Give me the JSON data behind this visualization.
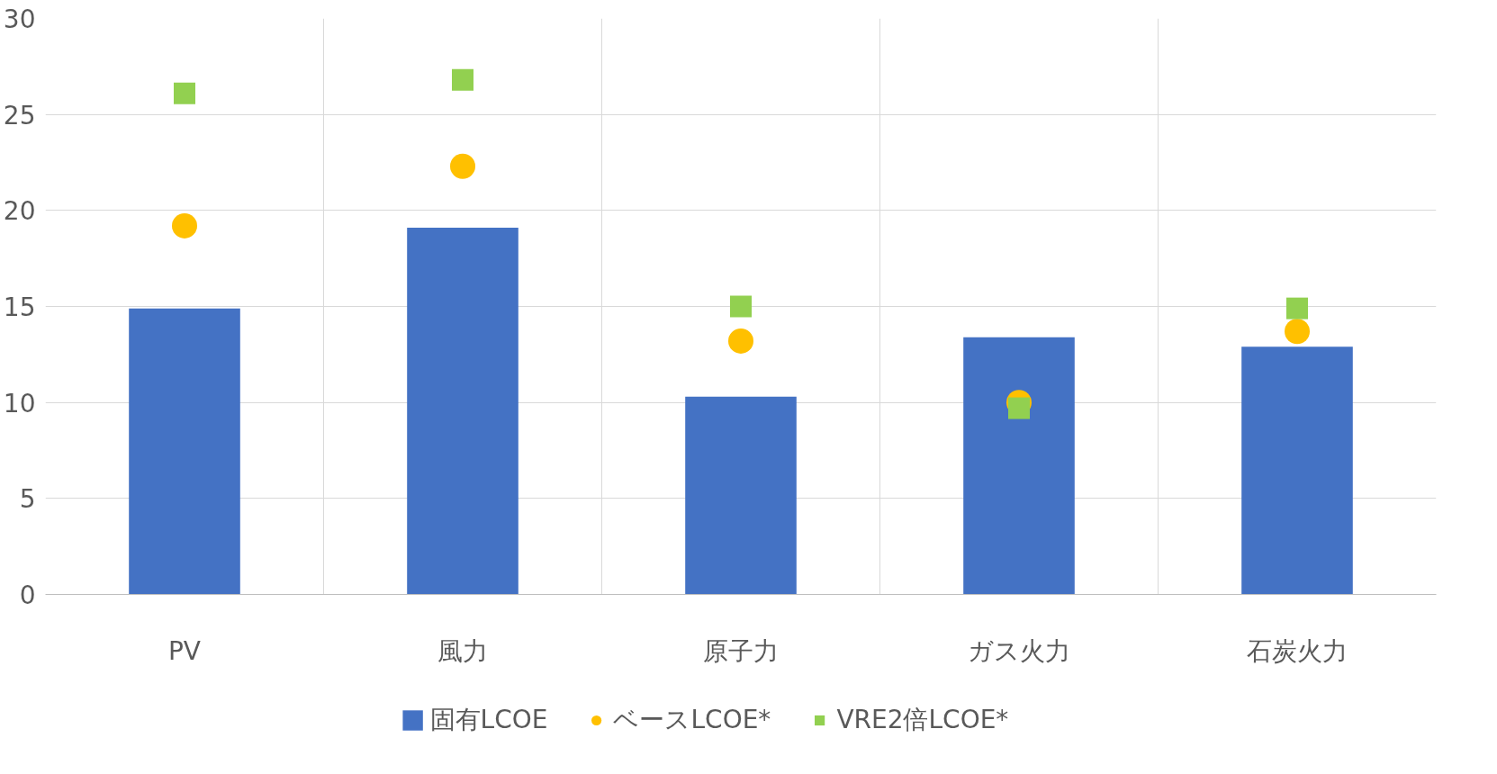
{
  "chart_data": {
    "type": "bar",
    "categories": [
      "PV",
      "風力",
      "原子力",
      "ガス火力",
      "石炭火力"
    ],
    "series": [
      {
        "name": "固有LCOE",
        "color": "#4472c4",
        "values": [
          14.9,
          19.1,
          10.3,
          13.4,
          12.9
        ]
      },
      {
        "name": "ベースLCOE*",
        "type": "scatter",
        "marker": "circle",
        "color": "#ffc000",
        "values": [
          19.2,
          22.3,
          13.2,
          10.0,
          13.7
        ]
      },
      {
        "name": "VRE2倍LCOE*",
        "type": "scatter",
        "marker": "square",
        "color": "#92d050",
        "values": [
          26.1,
          26.8,
          15.0,
          9.7,
          14.9
        ]
      }
    ],
    "ylim": [
      0,
      30
    ],
    "yticks": [
      0,
      5,
      10,
      15,
      20,
      25,
      30
    ],
    "grid": true,
    "legend": "bottom"
  }
}
